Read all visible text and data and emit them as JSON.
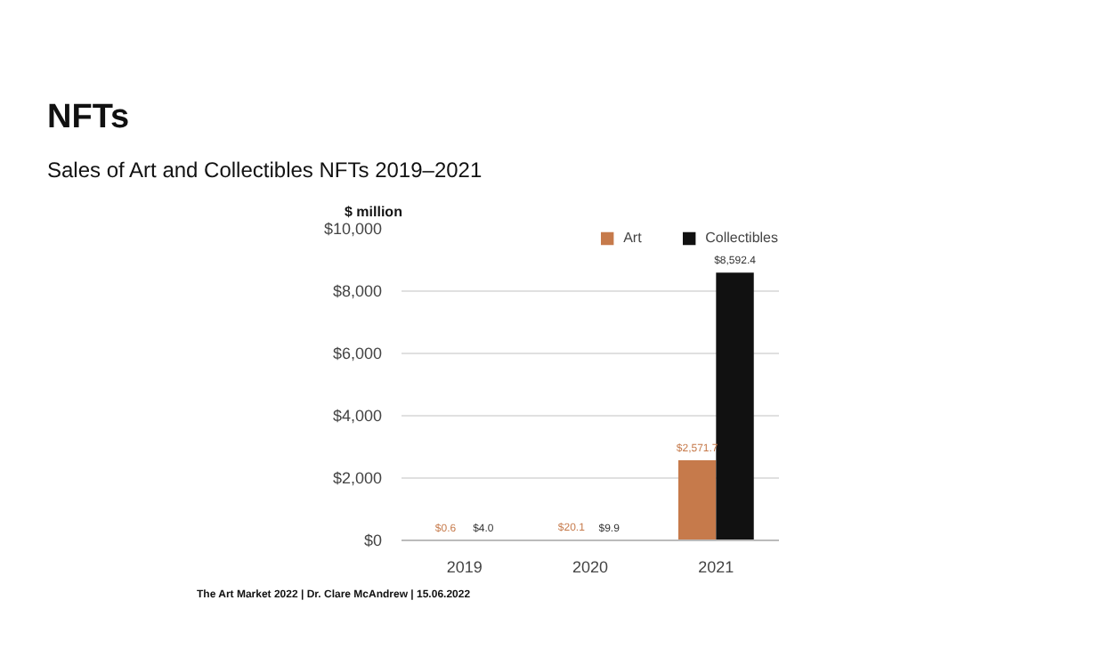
{
  "chart_data": {
    "type": "bar",
    "title": "NFTs",
    "subtitle": "Sales of Art and Collectibles NFTs 2019–2021",
    "ylabel": "$ million",
    "categories": [
      "2019",
      "2020",
      "2021"
    ],
    "series": [
      {
        "name": "Art",
        "color": "#c67a4b",
        "values": [
          0.6,
          20.1,
          2571.7
        ],
        "value_labels": [
          "$0.6",
          "$20.1",
          "$2,571.7"
        ]
      },
      {
        "name": "Collectibles",
        "color": "#111111",
        "values": [
          4.0,
          9.9,
          8592.4
        ],
        "value_labels": [
          "$4.0",
          "$9.9",
          "$8,592.4"
        ]
      }
    ],
    "ylim": [
      0,
      10000
    ],
    "yticks": [
      {
        "value": 0,
        "label": "$0"
      },
      {
        "value": 2000,
        "label": "$2,000"
      },
      {
        "value": 4000,
        "label": "$4,000"
      },
      {
        "value": 6000,
        "label": "$6,000"
      },
      {
        "value": 8000,
        "label": "$8,000"
      },
      {
        "value": 10000,
        "label": "$10,000"
      }
    ],
    "grid": "y",
    "legend": "top right",
    "annotations": [
      "The Art Market 2022 | Dr. Clare McAndrew | 15.06.2022"
    ]
  }
}
